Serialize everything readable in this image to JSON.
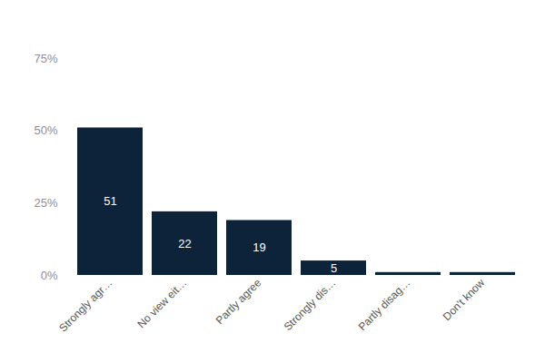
{
  "chart_data": {
    "type": "bar",
    "categories": [
      "Strongly agr…",
      "No view eit…",
      "Partly agree",
      "Strongly dis…",
      "Partly disag…",
      "Don't know"
    ],
    "values": [
      51,
      22,
      19,
      5,
      1,
      1
    ],
    "value_labels": [
      "51",
      "22",
      "19",
      "5",
      null,
      null
    ],
    "color": "#0c2339",
    "ylim": [
      0,
      75
    ],
    "yticks": [
      {
        "value": 0,
        "label": "0%"
      },
      {
        "value": 25,
        "label": "25%"
      },
      {
        "value": 50,
        "label": "50%"
      },
      {
        "value": 75,
        "label": "75%"
      }
    ],
    "grid": false,
    "data_labels": true
  }
}
